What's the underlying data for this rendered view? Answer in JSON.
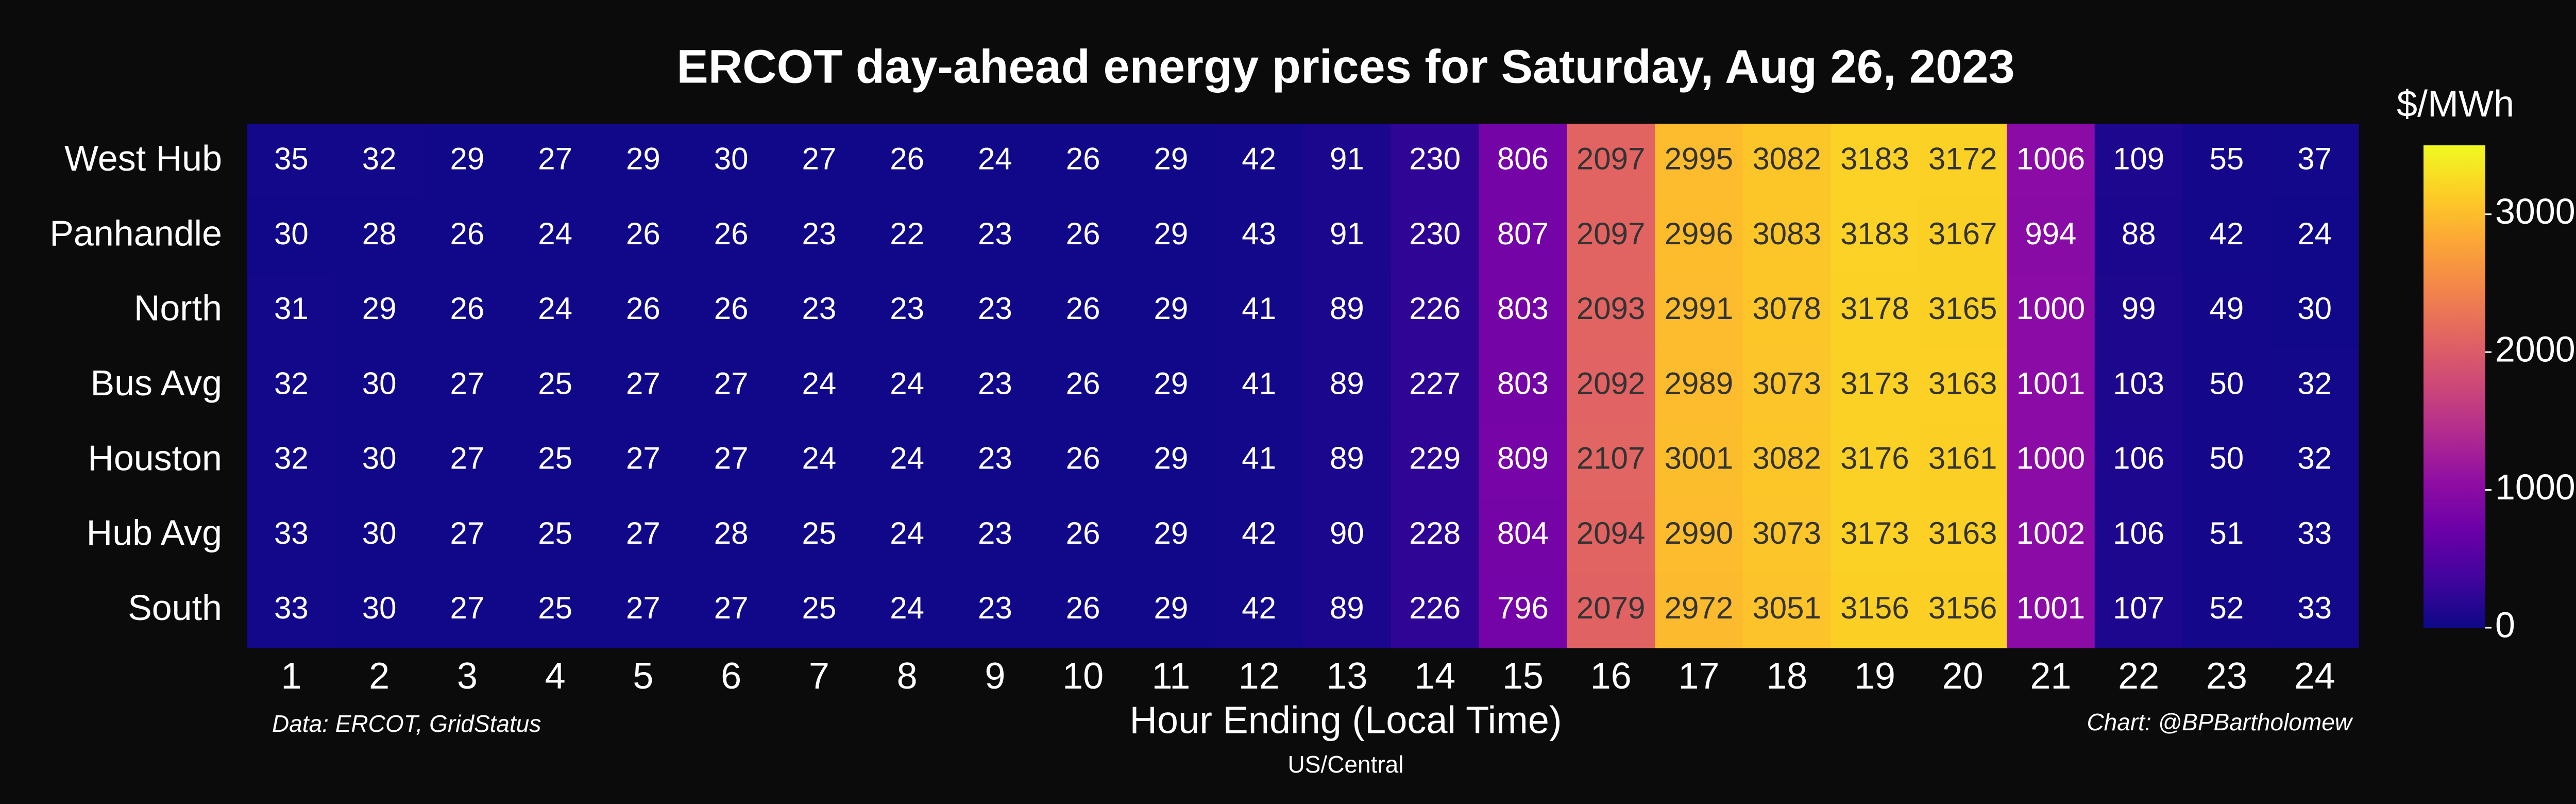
{
  "chart_data": {
    "type": "heatmap",
    "title": "ERCOT day-ahead energy prices for Saturday, Aug 26, 2023",
    "x_label": "Hour Ending (Local Time)",
    "x_sublabel": "US/Central",
    "source": "Data: ERCOT, GridStatus",
    "credit": "Chart: @BPBartholomew",
    "colorbar_label": "$/MWh",
    "colormap": "plasma",
    "clim": [
      0,
      3500
    ],
    "cticks": [
      0,
      1000,
      2000,
      3000
    ],
    "columns": [
      1,
      2,
      3,
      4,
      5,
      6,
      7,
      8,
      9,
      10,
      11,
      12,
      13,
      14,
      15,
      16,
      17,
      18,
      19,
      20,
      21,
      22,
      23,
      24
    ],
    "rows": [
      "West Hub",
      "Panhandle",
      "North",
      "Bus Avg",
      "Houston",
      "Hub Avg",
      "South"
    ],
    "values": [
      [
        35,
        32,
        29,
        27,
        29,
        30,
        27,
        26,
        24,
        26,
        29,
        42,
        91,
        230,
        806,
        2097,
        2995,
        3082,
        3183,
        3172,
        1006,
        109,
        55,
        37
      ],
      [
        30,
        28,
        26,
        24,
        26,
        26,
        23,
        22,
        23,
        26,
        29,
        43,
        91,
        230,
        807,
        2097,
        2996,
        3083,
        3183,
        3167,
        994,
        88,
        42,
        24
      ],
      [
        31,
        29,
        26,
        24,
        26,
        26,
        23,
        23,
        23,
        26,
        29,
        41,
        89,
        226,
        803,
        2093,
        2991,
        3078,
        3178,
        3165,
        1000,
        99,
        49,
        30
      ],
      [
        32,
        30,
        27,
        25,
        27,
        27,
        24,
        24,
        23,
        26,
        29,
        41,
        89,
        227,
        803,
        2092,
        2989,
        3073,
        3173,
        3163,
        1001,
        103,
        50,
        32
      ],
      [
        32,
        30,
        27,
        25,
        27,
        27,
        24,
        24,
        23,
        26,
        29,
        41,
        89,
        229,
        809,
        2107,
        3001,
        3082,
        3176,
        3161,
        1000,
        106,
        50,
        32
      ],
      [
        33,
        30,
        27,
        25,
        27,
        28,
        25,
        24,
        23,
        26,
        29,
        42,
        90,
        228,
        804,
        2094,
        2990,
        3073,
        3173,
        3163,
        1002,
        106,
        51,
        33
      ],
      [
        33,
        30,
        27,
        25,
        27,
        27,
        25,
        24,
        23,
        26,
        29,
        42,
        89,
        226,
        796,
        2079,
        2972,
        3051,
        3156,
        3156,
        1001,
        107,
        52,
        33
      ]
    ]
  }
}
